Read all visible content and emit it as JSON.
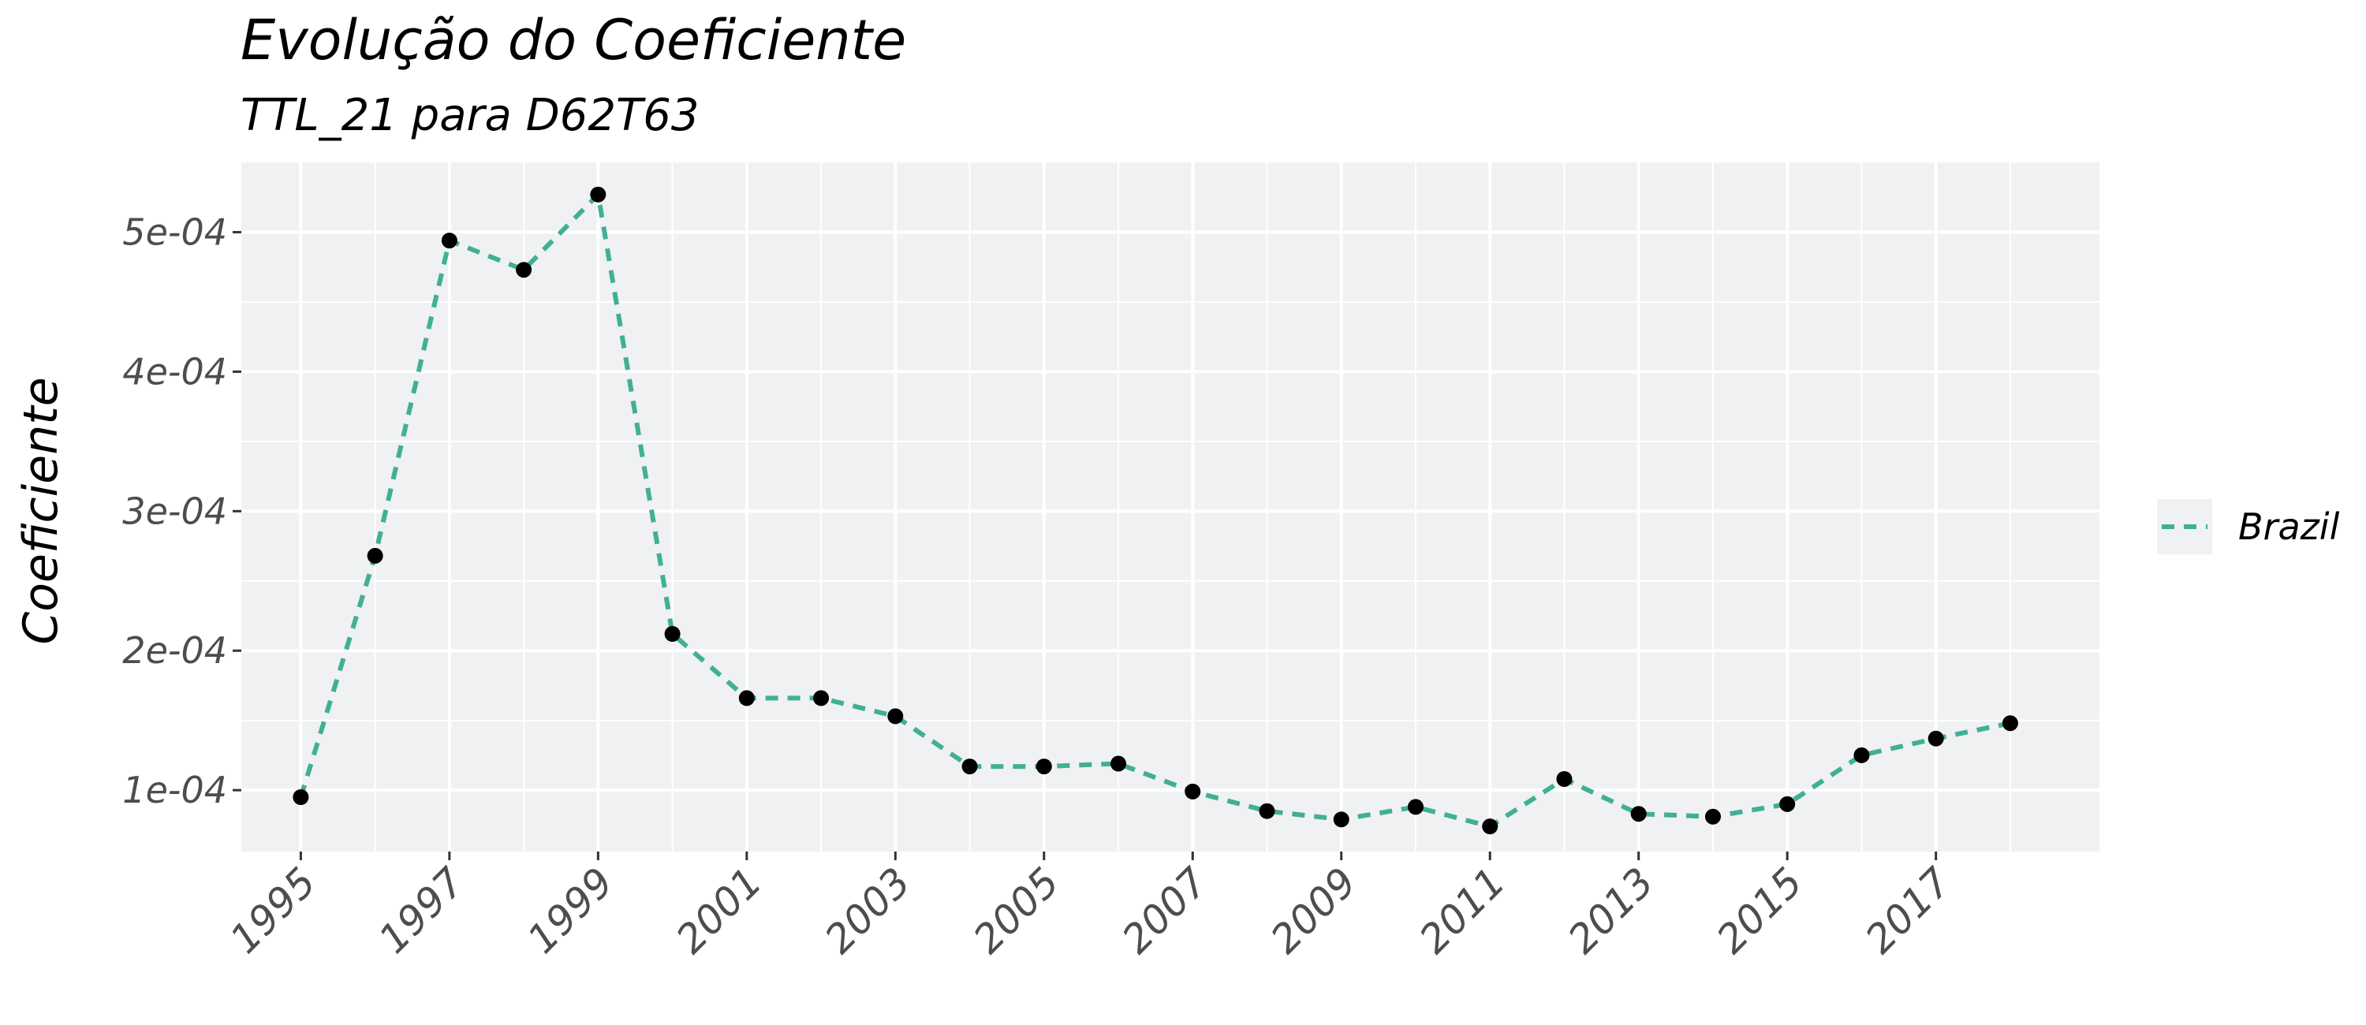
{
  "chart_data": {
    "type": "line",
    "title": "Evolução do Coeficiente",
    "subtitle": "TTL_21 para D62T63",
    "xlabel": "",
    "ylabel": "Coeficiente",
    "x": [
      1995,
      1996,
      1997,
      1998,
      1999,
      2000,
      2001,
      2002,
      2003,
      2004,
      2005,
      2006,
      2007,
      2008,
      2009,
      2010,
      2011,
      2012,
      2013,
      2014,
      2015,
      2016,
      2017,
      2018
    ],
    "x_ticks": [
      "1995",
      "1997",
      "1999",
      "2001",
      "2003",
      "2005",
      "2007",
      "2009",
      "2011",
      "2013",
      "2015",
      "2017"
    ],
    "y_ticks": [
      "1e-04",
      "2e-04",
      "3e-04",
      "4e-04",
      "5e-04"
    ],
    "xlim": [
      1994.2,
      2019.2
    ],
    "ylim": [
      5.6e-05,
      0.00055
    ],
    "series": [
      {
        "name": "Brazil",
        "color": "#40B095",
        "values": [
          9.5e-05,
          0.000268,
          0.000494,
          0.000473,
          0.000527,
          0.000212,
          0.000166,
          0.000166,
          0.000153,
          0.000117,
          0.000117,
          0.000119,
          9.9e-05,
          8.5e-05,
          7.9e-05,
          8.8e-05,
          7.4e-05,
          0.000108,
          8.3e-05,
          8.1e-05,
          9e-05,
          0.000125,
          0.000137,
          0.000148
        ]
      }
    ],
    "legend_position": "right",
    "grid": true
  }
}
